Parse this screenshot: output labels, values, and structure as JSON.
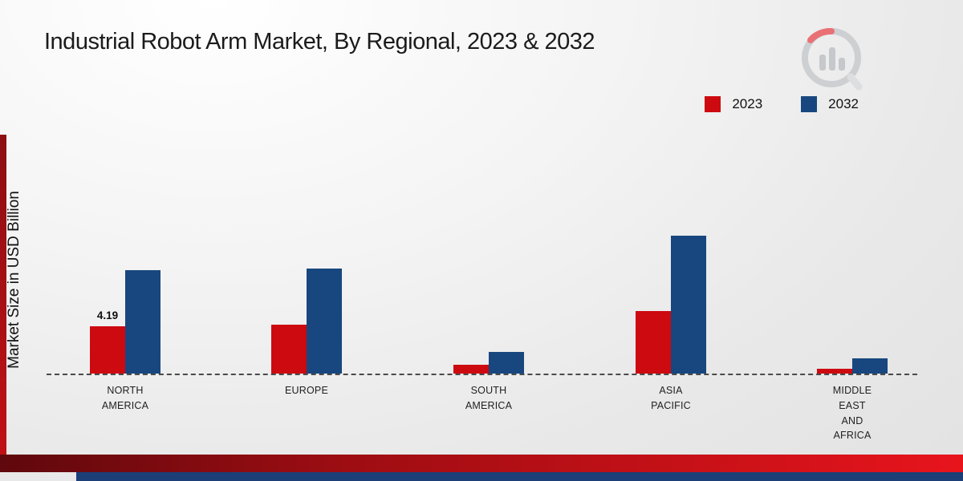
{
  "title": "Industrial Robot Arm Market, By Regional, 2023 & 2032",
  "y_axis_label": "Market Size in USD Billion",
  "colors": {
    "series_2023": "#cc0a10",
    "series_2032": "#17477e",
    "accent_red": "#c01015",
    "footer_blue": "#1c3f77"
  },
  "legend": {
    "position": "top-right",
    "items": [
      {
        "label": "2023",
        "color": "#cc0a10"
      },
      {
        "label": "2032",
        "color": "#17477e"
      }
    ]
  },
  "chart_data": {
    "type": "bar",
    "title": "Industrial Robot Arm Market, By Regional, 2023 & 2032",
    "xlabel": "",
    "ylabel": "Market Size in USD Billion",
    "ylim": [
      0,
      14
    ],
    "grid": false,
    "baseline_style": "dashed",
    "categories": [
      "NORTH AMERICA",
      "EUROPE",
      "SOUTH AMERICA",
      "ASIA PACIFIC",
      "MIDDLE EAST AND AFRICA"
    ],
    "category_lines": [
      [
        "NORTH",
        "AMERICA"
      ],
      [
        "EUROPE"
      ],
      [
        "SOUTH",
        "AMERICA"
      ],
      [
        "ASIA",
        "PACIFIC"
      ],
      [
        "MIDDLE",
        "EAST",
        "AND",
        "AFRICA"
      ]
    ],
    "series": [
      {
        "name": "2023",
        "color": "#cc0a10",
        "values": [
          4.19,
          4.3,
          0.8,
          5.5,
          0.45
        ],
        "labels": [
          "4.19",
          "",
          "",
          "",
          ""
        ]
      },
      {
        "name": "2032",
        "color": "#17477e",
        "values": [
          9.15,
          9.3,
          1.9,
          12.2,
          1.35
        ],
        "labels": [
          "",
          "",
          "",
          "",
          ""
        ]
      }
    ]
  }
}
